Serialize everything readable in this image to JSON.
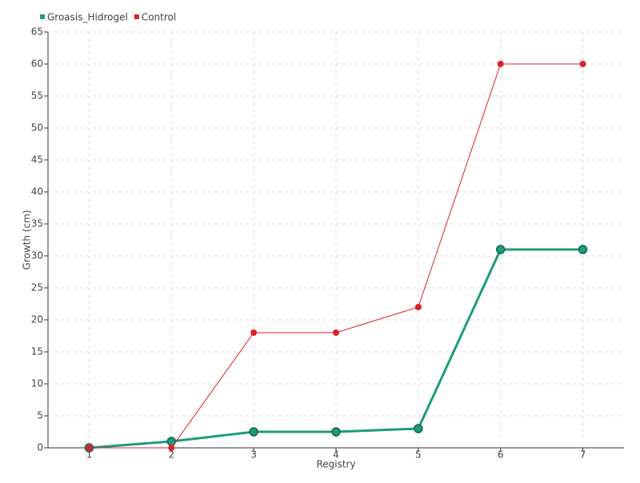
{
  "chart_data": {
    "type": "line",
    "x_label": "Registry",
    "y_label": "Growth (cm)",
    "x": [
      1,
      2,
      3,
      4,
      5,
      6,
      7
    ],
    "series": [
      {
        "name": "Groasis_Hidrogel",
        "color": "#1f9b7c",
        "values": [
          0,
          1,
          2.5,
          2.5,
          3,
          31,
          31
        ]
      },
      {
        "name": "Control",
        "color": "#e0202a",
        "values": [
          0,
          0,
          18,
          18,
          22,
          60,
          60
        ]
      }
    ],
    "xlim": [
      0.5,
      7.5
    ],
    "xticks": [
      1,
      2,
      3,
      4,
      5,
      6,
      7
    ],
    "ylim": [
      0,
      65
    ],
    "yticks": [
      0,
      5,
      10,
      15,
      20,
      25,
      30,
      35,
      40,
      45,
      50,
      55,
      60,
      65
    ],
    "grid": true
  }
}
